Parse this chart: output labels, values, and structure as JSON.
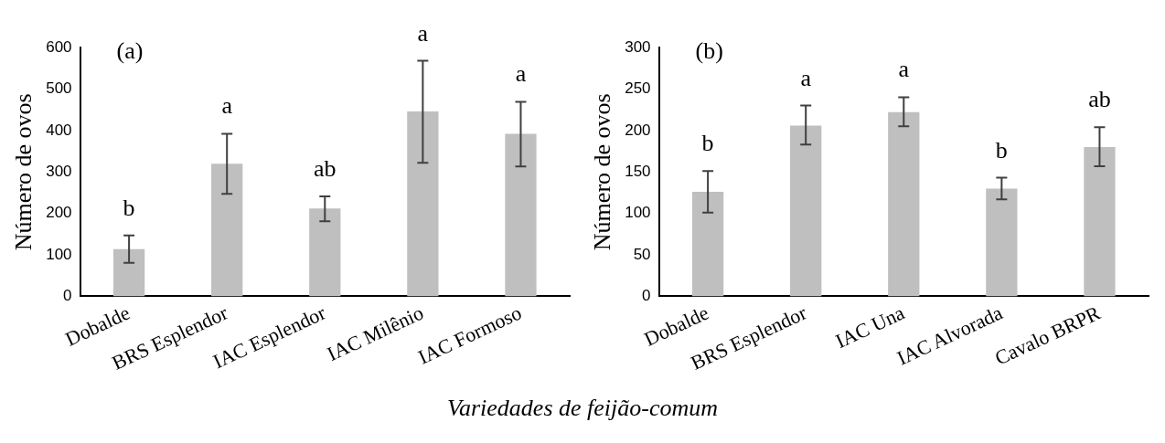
{
  "chart_data": [
    {
      "type": "bar",
      "title": "(a)",
      "ylabel": "Número de ovos",
      "categories": [
        "Dobalde",
        "BRS Esplendor",
        "IAC Esplendor",
        "IAC Milênio",
        "IAC Formoso"
      ],
      "series": [
        {
          "color": "#bfbfbf",
          "values": [
            114,
            320,
            212,
            446,
            392
          ],
          "errors": [
            [
              81,
              147
            ],
            [
              247,
              392
            ],
            [
              181,
              241
            ],
            [
              322,
              568
            ],
            [
              313,
              469
            ]
          ]
        }
      ],
      "ylim": [
        0,
        600
      ],
      "yticks": [
        0,
        100,
        200,
        300,
        400,
        500,
        600
      ],
      "grid": false,
      "legend": false,
      "annotations": [
        "b",
        "a",
        "ab",
        "a",
        "a"
      ]
    },
    {
      "type": "bar",
      "title": "(b)",
      "ylabel": "Número de ovos",
      "xlabel": "Variedades de feijão-comum",
      "categories": [
        "Dobalde",
        "BRS Esplendor",
        "IAC Una",
        "IAC Alvorada",
        "Cavalo BRPR"
      ],
      "series": [
        {
          "color": "#bfbfbf",
          "values": [
            126,
            206,
            222,
            130,
            180
          ],
          "errors": [
            [
              101,
              151
            ],
            [
              183,
              230
            ],
            [
              205,
              240
            ],
            [
              117,
              143
            ],
            [
              157,
              204
            ]
          ]
        }
      ],
      "ylim": [
        0,
        300
      ],
      "yticks": [
        0,
        50,
        100,
        150,
        200,
        250,
        300
      ],
      "grid": false,
      "legend": false,
      "annotations": [
        "b",
        "a",
        "a",
        "b",
        "ab"
      ]
    }
  ]
}
